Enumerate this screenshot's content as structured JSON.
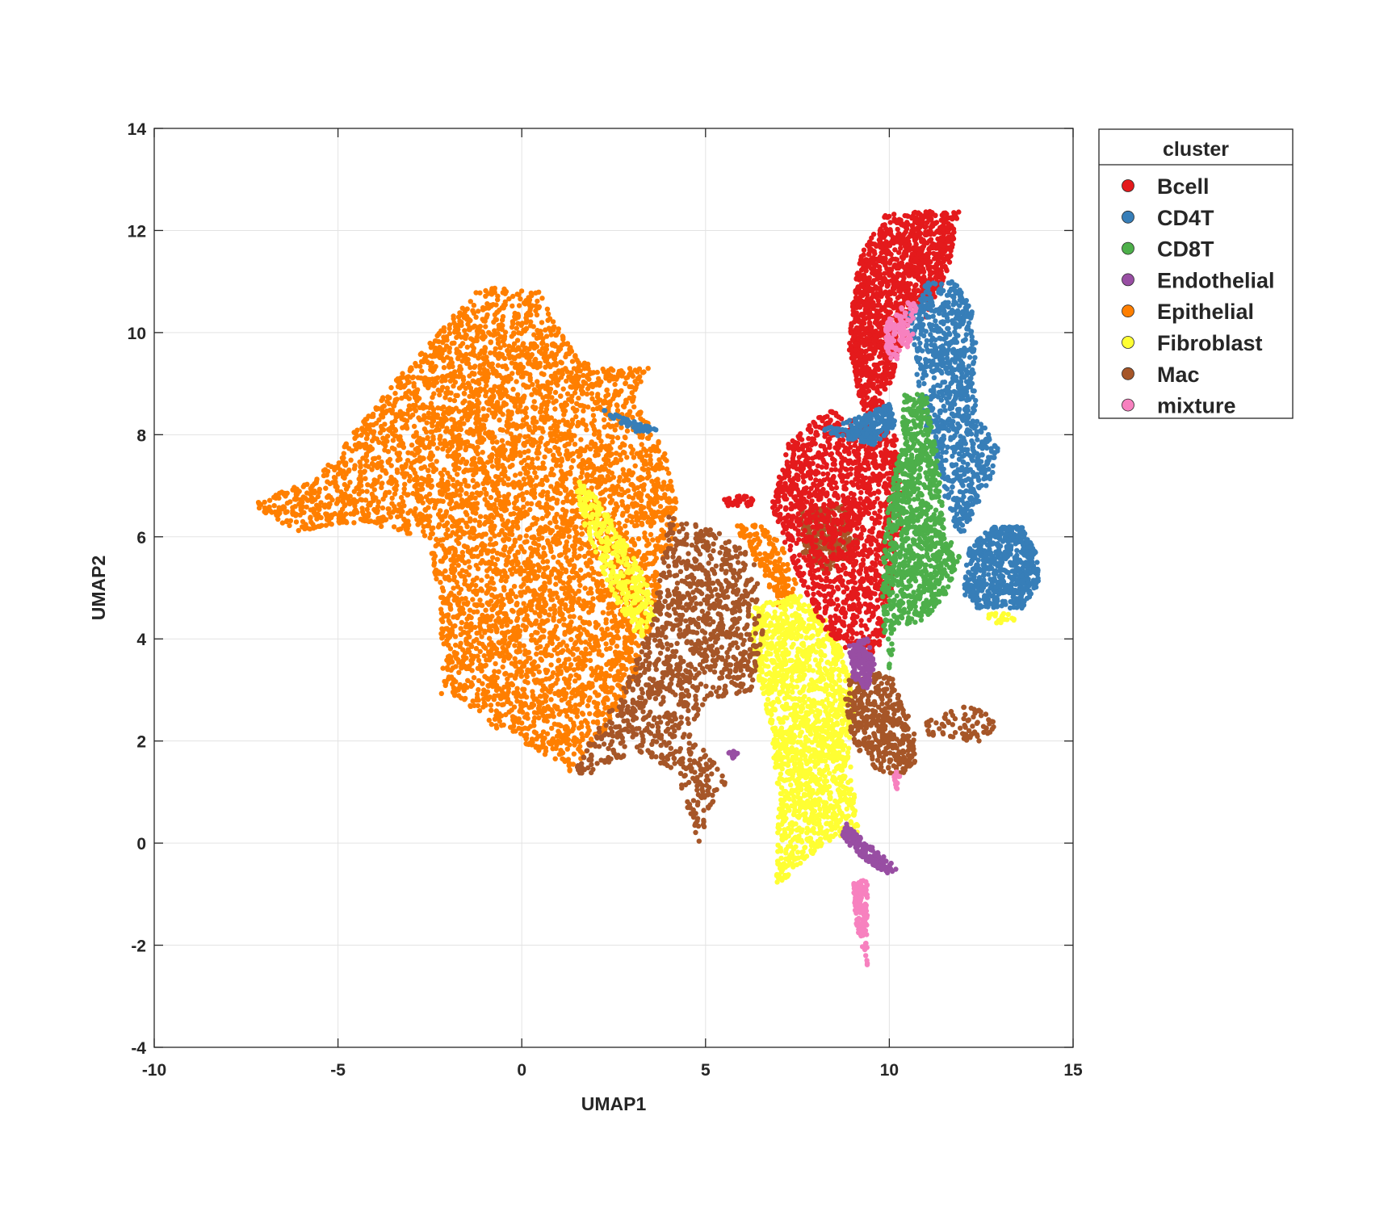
{
  "chart_data": {
    "type": "scatter",
    "title": "",
    "xlabel": "UMAP1",
    "ylabel": "UMAP2",
    "xlim": [
      -10,
      15
    ],
    "ylim": [
      -4,
      14
    ],
    "xticks": [
      -10,
      -5,
      0,
      5,
      10,
      15
    ],
    "yticks": [
      -4,
      -2,
      0,
      2,
      4,
      6,
      8,
      10,
      12,
      14
    ],
    "grid": true,
    "legend": {
      "title": "cluster",
      "placement": "outside-right-top",
      "entries": [
        "Bcell",
        "CD4T",
        "CD8T",
        "Endothelial",
        "Epithelial",
        "Fibroblast",
        "Mac",
        "mixture"
      ]
    },
    "series": [
      {
        "name": "Epithelial",
        "color": "#ff7f00",
        "regions": [
          {
            "polygon": [
              [
                -7.4,
                6.6
              ],
              [
                -5.5,
                7.2
              ],
              [
                -3.5,
                9.0
              ],
              [
                -2.0,
                10.2
              ],
              [
                -1.2,
                10.9
              ],
              [
                0.5,
                10.8
              ],
              [
                0.8,
                10.4
              ],
              [
                1.5,
                9.5
              ],
              [
                2.5,
                9.3
              ],
              [
                3.5,
                9.3
              ],
              [
                3.0,
                8.8
              ],
              [
                4.0,
                7.5
              ],
              [
                4.3,
                6.3
              ],
              [
                3.8,
                5.2
              ],
              [
                3.3,
                3.6
              ],
              [
                2.3,
                2.2
              ],
              [
                1.3,
                1.4
              ],
              [
                0.2,
                1.9
              ],
              [
                -0.8,
                2.3
              ],
              [
                -1.6,
                2.8
              ],
              [
                -2.2,
                2.9
              ],
              [
                -2.2,
                4.8
              ],
              [
                -2.6,
                6.0
              ],
              [
                -3.2,
                6.0
              ],
              [
                -4.2,
                6.3
              ],
              [
                -5.5,
                6.2
              ],
              [
                -6.0,
                6.1
              ],
              [
                -7.0,
                6.4
              ]
            ],
            "n": 5200
          },
          {
            "polygon": [
              [
                6.3,
                6.3
              ],
              [
                7.0,
                6.0
              ],
              [
                7.5,
                5.0
              ],
              [
                7.0,
                4.6
              ],
              [
                6.5,
                5.4
              ],
              [
                5.8,
                6.2
              ]
            ],
            "n": 160
          }
        ]
      },
      {
        "name": "Fibroblast",
        "color": "#ffff33",
        "regions": [
          {
            "polygon": [
              [
                1.4,
                7.3
              ],
              [
                2.2,
                6.6
              ],
              [
                3.3,
                5.3
              ],
              [
                3.8,
                4.5
              ],
              [
                3.2,
                4.0
              ],
              [
                2.5,
                4.8
              ],
              [
                1.6,
                6.4
              ]
            ],
            "n": 360
          },
          {
            "polygon": [
              [
                6.2,
                4.6
              ],
              [
                7.5,
                4.9
              ],
              [
                8.5,
                4.2
              ],
              [
                9.1,
                3.0
              ],
              [
                8.9,
                1.8
              ],
              [
                9.2,
                0.2
              ],
              [
                8.5,
                0.1
              ],
              [
                7.6,
                -0.4
              ],
              [
                6.9,
                -0.9
              ],
              [
                7.0,
                0.9
              ],
              [
                6.7,
                2.5
              ],
              [
                6.3,
                3.6
              ]
            ],
            "n": 1600
          },
          {
            "polygon": [
              [
                12.7,
                4.5
              ],
              [
                13.4,
                4.5
              ],
              [
                13.4,
                4.3
              ],
              [
                12.7,
                4.3
              ]
            ],
            "n": 20
          }
        ]
      },
      {
        "name": "Mac",
        "color": "#a65628",
        "regions": [
          {
            "polygon": [
              [
                4.0,
                6.4
              ],
              [
                5.4,
                6.1
              ],
              [
                6.3,
                5.6
              ],
              [
                6.6,
                4.3
              ],
              [
                6.3,
                3.0
              ],
              [
                5.0,
                2.8
              ],
              [
                4.6,
                2.2
              ],
              [
                5.6,
                1.2
              ],
              [
                5.0,
                0.6
              ],
              [
                4.9,
                -0.2
              ],
              [
                4.2,
                1.4
              ],
              [
                3.2,
                1.8
              ],
              [
                2.4,
                1.6
              ],
              [
                1.5,
                1.2
              ],
              [
                1.5,
                1.6
              ],
              [
                2.4,
                2.6
              ],
              [
                3.0,
                3.4
              ],
              [
                3.6,
                4.5
              ]
            ],
            "n": 1200
          },
          {
            "polygon": [
              [
                7.6,
                6.6
              ],
              [
                8.8,
                6.6
              ],
              [
                9.2,
                5.8
              ],
              [
                8.3,
                5.3
              ],
              [
                7.6,
                5.7
              ]
            ],
            "n": 260
          },
          {
            "polygon": [
              [
                8.9,
                3.2
              ],
              [
                10.0,
                3.4
              ],
              [
                10.7,
                2.2
              ],
              [
                10.7,
                1.5
              ],
              [
                10.2,
                1.3
              ],
              [
                9.5,
                1.5
              ],
              [
                9.0,
                2.0
              ],
              [
                8.8,
                2.8
              ]
            ],
            "n": 420
          },
          {
            "polygon": [
              [
                11.0,
                2.4
              ],
              [
                12.1,
                2.7
              ],
              [
                12.8,
                2.6
              ],
              [
                12.9,
                2.0
              ],
              [
                12.2,
                2.0
              ],
              [
                11.4,
                2.1
              ],
              [
                11.0,
                2.1
              ]
            ],
            "n": 80
          }
        ]
      },
      {
        "name": "Bcell",
        "color": "#e41a1c",
        "regions": [
          {
            "polygon": [
              [
                9.2,
                11.5
              ],
              [
                9.9,
                12.3
              ],
              [
                11.0,
                12.4
              ],
              [
                11.9,
                12.4
              ],
              [
                11.6,
                11.2
              ],
              [
                11.0,
                10.3
              ],
              [
                10.6,
                10.5
              ],
              [
                10.3,
                9.6
              ],
              [
                9.8,
                8.5
              ],
              [
                9.3,
                8.4
              ],
              [
                8.9,
                9.6
              ],
              [
                9.0,
                10.6
              ]
            ],
            "n": 1400
          },
          {
            "polygon": [
              [
                7.2,
                7.8
              ],
              [
                8.3,
                8.5
              ],
              [
                9.3,
                8.2
              ],
              [
                10.2,
                8.0
              ],
              [
                10.4,
                6.4
              ],
              [
                10.2,
                5.6
              ],
              [
                10.0,
                4.7
              ],
              [
                9.8,
                3.8
              ],
              [
                9.0,
                3.6
              ],
              [
                8.2,
                4.2
              ],
              [
                7.8,
                4.8
              ],
              [
                7.2,
                5.8
              ],
              [
                6.8,
                6.6
              ]
            ],
            "n": 1500
          },
          {
            "polygon": [
              [
                5.5,
                6.8
              ],
              [
                6.3,
                6.8
              ],
              [
                6.3,
                6.6
              ],
              [
                5.5,
                6.6
              ]
            ],
            "n": 30
          }
        ]
      },
      {
        "name": "CD4T",
        "color": "#377eb8",
        "regions": [
          {
            "polygon": [
              [
                10.5,
                10.3
              ],
              [
                11.0,
                11.0
              ],
              [
                11.8,
                11.0
              ],
              [
                12.3,
                10.4
              ],
              [
                12.4,
                9.5
              ],
              [
                12.3,
                9.0
              ],
              [
                12.4,
                8.3
              ],
              [
                13.0,
                7.8
              ],
              [
                12.8,
                7.2
              ],
              [
                12.3,
                6.5
              ],
              [
                12.0,
                6.0
              ],
              [
                11.6,
                6.4
              ],
              [
                11.4,
                7.3
              ],
              [
                11.0,
                8.0
              ],
              [
                10.8,
                8.8
              ],
              [
                10.7,
                9.6
              ]
            ],
            "n": 900
          },
          {
            "polygon": [
              [
                12.2,
                5.8
              ],
              [
                12.8,
                6.2
              ],
              [
                13.6,
                6.2
              ],
              [
                14.0,
                5.7
              ],
              [
                14.1,
                5.1
              ],
              [
                13.6,
                4.6
              ],
              [
                13.0,
                4.6
              ],
              [
                12.4,
                4.6
              ],
              [
                12.0,
                4.9
              ],
              [
                12.1,
                5.5
              ]
            ],
            "n": 600
          },
          {
            "polygon": [
              [
                8.2,
                8.1
              ],
              [
                9.0,
                8.3
              ],
              [
                10.0,
                8.6
              ],
              [
                10.2,
                8.2
              ],
              [
                9.6,
                7.8
              ],
              [
                8.8,
                7.9
              ]
            ],
            "n": 220
          },
          {
            "polygon": [
              [
                2.2,
                8.5
              ],
              [
                2.9,
                8.3
              ],
              [
                3.7,
                8.1
              ],
              [
                3.2,
                8.0
              ],
              [
                2.5,
                8.3
              ]
            ],
            "n": 60
          }
        ]
      },
      {
        "name": "CD8T",
        "color": "#4daf4a",
        "regions": [
          {
            "polygon": [
              [
                10.4,
                8.8
              ],
              [
                11.0,
                8.8
              ],
              [
                11.3,
                7.6
              ],
              [
                11.5,
                6.2
              ],
              [
                11.9,
                5.6
              ],
              [
                11.6,
                4.9
              ],
              [
                11.0,
                4.4
              ],
              [
                10.2,
                4.2
              ],
              [
                10.0,
                3.4
              ],
              [
                9.8,
                4.3
              ],
              [
                9.8,
                5.5
              ],
              [
                10.0,
                6.8
              ],
              [
                10.3,
                7.8
              ]
            ],
            "n": 1000
          }
        ]
      },
      {
        "name": "mixture",
        "color": "#f781bf",
        "regions": [
          {
            "polygon": [
              [
                9.9,
                10.2
              ],
              [
                10.4,
                10.6
              ],
              [
                10.8,
                10.6
              ],
              [
                10.6,
                9.8
              ],
              [
                10.1,
                9.4
              ],
              [
                9.9,
                9.7
              ]
            ],
            "n": 120
          },
          {
            "polygon": [
              [
                9.0,
                -0.8
              ],
              [
                9.4,
                -0.7
              ],
              [
                9.4,
                -2.4
              ],
              [
                9.1,
                -1.6
              ]
            ],
            "n": 140
          },
          {
            "polygon": [
              [
                10.1,
                1.4
              ],
              [
                10.3,
                1.4
              ],
              [
                10.2,
                0.9
              ]
            ],
            "n": 15
          }
        ]
      },
      {
        "name": "Endothelial",
        "color": "#984ea3",
        "regions": [
          {
            "polygon": [
              [
                8.9,
                3.9
              ],
              [
                9.4,
                4.0
              ],
              [
                9.6,
                3.5
              ],
              [
                9.4,
                3.0
              ],
              [
                9.0,
                3.2
              ]
            ],
            "n": 150
          },
          {
            "polygon": [
              [
                8.8,
                0.4
              ],
              [
                9.4,
                0.0
              ],
              [
                9.9,
                -0.3
              ],
              [
                10.3,
                -0.5
              ],
              [
                9.9,
                -0.6
              ],
              [
                9.3,
                -0.3
              ],
              [
                8.7,
                0.1
              ]
            ],
            "n": 160
          },
          {
            "polygon": [
              [
                5.6,
                1.8
              ],
              [
                5.9,
                1.8
              ],
              [
                5.8,
                1.6
              ]
            ],
            "n": 12
          }
        ]
      }
    ]
  }
}
